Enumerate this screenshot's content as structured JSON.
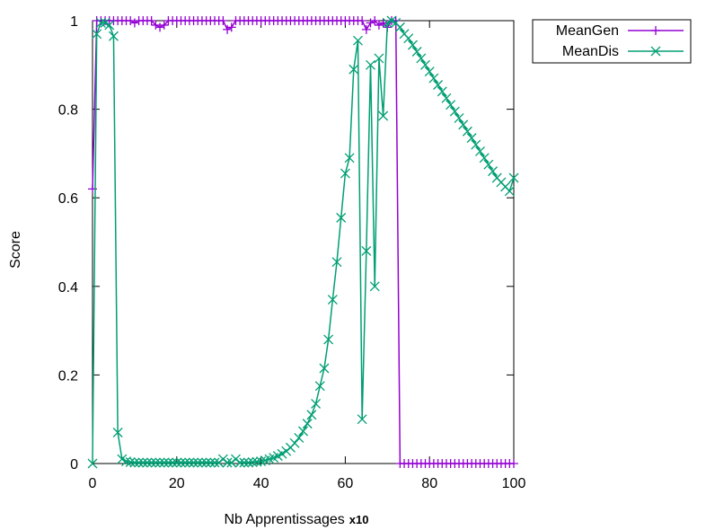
{
  "chart_data": {
    "type": "line",
    "xlabel": "Nb Apprentissages",
    "xlabel_suffix": "x10",
    "ylabel": "Score",
    "xlim": [
      0,
      100
    ],
    "ylim": [
      0,
      1
    ],
    "x_ticks": [
      "0",
      "20",
      "40",
      "60",
      "80",
      "100"
    ],
    "y_ticks": [
      "0",
      "0.2",
      "0.4",
      "0.6",
      "0.8",
      "1"
    ],
    "grid": false,
    "legend_position": "top-right, outside plot",
    "series": [
      {
        "name": "MeanGen",
        "color": "#9400d3",
        "marker": "plus",
        "points": [
          [
            0,
            0.62
          ],
          [
            1,
            1.0
          ],
          [
            2,
            1.0
          ],
          [
            3,
            1.0
          ],
          [
            4,
            1.0
          ],
          [
            5,
            1.0
          ],
          [
            6,
            1.0
          ],
          [
            7,
            1.0
          ],
          [
            8,
            1.0
          ],
          [
            9,
            1.0
          ],
          [
            10,
            0.995
          ],
          [
            11,
            1.0
          ],
          [
            12,
            1.0
          ],
          [
            13,
            1.0
          ],
          [
            14,
            1.0
          ],
          [
            15,
            0.99
          ],
          [
            16,
            0.985
          ],
          [
            17,
            0.99
          ],
          [
            18,
            1.0
          ],
          [
            19,
            1.0
          ],
          [
            20,
            1.0
          ],
          [
            21,
            1.0
          ],
          [
            22,
            1.0
          ],
          [
            23,
            1.0
          ],
          [
            24,
            1.0
          ],
          [
            25,
            1.0
          ],
          [
            26,
            1.0
          ],
          [
            27,
            1.0
          ],
          [
            28,
            1.0
          ],
          [
            29,
            1.0
          ],
          [
            30,
            1.0
          ],
          [
            31,
            1.0
          ],
          [
            32,
            0.98
          ],
          [
            33,
            0.985
          ],
          [
            34,
            1.0
          ],
          [
            35,
            1.0
          ],
          [
            36,
            1.0
          ],
          [
            37,
            1.0
          ],
          [
            38,
            1.0
          ],
          [
            39,
            1.0
          ],
          [
            40,
            1.0
          ],
          [
            41,
            1.0
          ],
          [
            42,
            1.0
          ],
          [
            43,
            1.0
          ],
          [
            44,
            1.0
          ],
          [
            45,
            1.0
          ],
          [
            46,
            1.0
          ],
          [
            47,
            1.0
          ],
          [
            48,
            1.0
          ],
          [
            49,
            1.0
          ],
          [
            50,
            1.0
          ],
          [
            51,
            1.0
          ],
          [
            52,
            1.0
          ],
          [
            53,
            1.0
          ],
          [
            54,
            1.0
          ],
          [
            55,
            1.0
          ],
          [
            56,
            1.0
          ],
          [
            57,
            1.0
          ],
          [
            58,
            1.0
          ],
          [
            59,
            1.0
          ],
          [
            60,
            1.0
          ],
          [
            61,
            1.0
          ],
          [
            62,
            1.0
          ],
          [
            63,
            1.0
          ],
          [
            64,
            1.0
          ],
          [
            65,
            0.98
          ],
          [
            66,
            0.995
          ],
          [
            67,
            1.0
          ],
          [
            68,
            0.99
          ],
          [
            69,
            0.995
          ],
          [
            70,
            0.985
          ],
          [
            71,
            1.0
          ],
          [
            72,
            1.0
          ],
          [
            73,
            0.0
          ],
          [
            74,
            0.0
          ],
          [
            75,
            0.0
          ],
          [
            76,
            0.0
          ],
          [
            77,
            0.0
          ],
          [
            78,
            0.0
          ],
          [
            79,
            0.0
          ],
          [
            80,
            0.0
          ],
          [
            81,
            0.0
          ],
          [
            82,
            0.0
          ],
          [
            83,
            0.0
          ],
          [
            84,
            0.0
          ],
          [
            85,
            0.0
          ],
          [
            86,
            0.0
          ],
          [
            87,
            0.0
          ],
          [
            88,
            0.0
          ],
          [
            89,
            0.0
          ],
          [
            90,
            0.0
          ],
          [
            91,
            0.0
          ],
          [
            92,
            0.0
          ],
          [
            93,
            0.0
          ],
          [
            94,
            0.0
          ],
          [
            95,
            0.0
          ],
          [
            96,
            0.0
          ],
          [
            97,
            0.0
          ],
          [
            98,
            0.0
          ],
          [
            99,
            0.0
          ],
          [
            100,
            0.0
          ]
        ]
      },
      {
        "name": "MeanDis",
        "color": "#009e73",
        "marker": "cross",
        "points": [
          [
            0,
            0.0
          ],
          [
            1,
            0.97
          ],
          [
            2,
            0.995
          ],
          [
            3,
            0.995
          ],
          [
            4,
            0.99
          ],
          [
            5,
            0.965
          ],
          [
            6,
            0.07
          ],
          [
            7,
            0.01
          ],
          [
            8,
            0.005
          ],
          [
            9,
            0.003
          ],
          [
            10,
            0.002
          ],
          [
            11,
            0.002
          ],
          [
            12,
            0.002
          ],
          [
            13,
            0.002
          ],
          [
            14,
            0.002
          ],
          [
            15,
            0.002
          ],
          [
            16,
            0.002
          ],
          [
            17,
            0.002
          ],
          [
            18,
            0.002
          ],
          [
            19,
            0.002
          ],
          [
            20,
            0.002
          ],
          [
            21,
            0.002
          ],
          [
            22,
            0.002
          ],
          [
            23,
            0.002
          ],
          [
            24,
            0.002
          ],
          [
            25,
            0.002
          ],
          [
            26,
            0.002
          ],
          [
            27,
            0.002
          ],
          [
            28,
            0.002
          ],
          [
            29,
            0.002
          ],
          [
            30,
            0.002
          ],
          [
            31,
            0.01
          ],
          [
            32,
            0.002
          ],
          [
            33,
            0.002
          ],
          [
            34,
            0.01
          ],
          [
            35,
            0.002
          ],
          [
            36,
            0.002
          ],
          [
            37,
            0.002
          ],
          [
            38,
            0.003
          ],
          [
            39,
            0.004
          ],
          [
            40,
            0.005
          ],
          [
            41,
            0.007
          ],
          [
            42,
            0.01
          ],
          [
            43,
            0.013
          ],
          [
            44,
            0.017
          ],
          [
            45,
            0.022
          ],
          [
            46,
            0.028
          ],
          [
            47,
            0.036
          ],
          [
            48,
            0.046
          ],
          [
            49,
            0.058
          ],
          [
            50,
            0.073
          ],
          [
            51,
            0.09
          ],
          [
            52,
            0.11
          ],
          [
            53,
            0.135
          ],
          [
            54,
            0.175
          ],
          [
            55,
            0.215
          ],
          [
            56,
            0.28
          ],
          [
            57,
            0.37
          ],
          [
            58,
            0.455
          ],
          [
            59,
            0.555
          ],
          [
            60,
            0.655
          ],
          [
            61,
            0.69
          ],
          [
            62,
            0.89
          ],
          [
            63,
            0.955
          ],
          [
            64,
            0.1
          ],
          [
            65,
            0.48
          ],
          [
            66,
            0.9
          ],
          [
            67,
            0.4
          ],
          [
            68,
            0.915
          ],
          [
            69,
            0.785
          ],
          [
            70,
            0.995
          ],
          [
            71,
            1.0
          ],
          [
            72,
            0.995
          ],
          [
            73,
            0.985
          ],
          [
            74,
            0.97
          ],
          [
            75,
            0.96
          ],
          [
            76,
            0.945
          ],
          [
            77,
            0.93
          ],
          [
            78,
            0.915
          ],
          [
            79,
            0.9
          ],
          [
            80,
            0.885
          ],
          [
            81,
            0.87
          ],
          [
            82,
            0.855
          ],
          [
            83,
            0.84
          ],
          [
            84,
            0.825
          ],
          [
            85,
            0.81
          ],
          [
            86,
            0.795
          ],
          [
            87,
            0.78
          ],
          [
            88,
            0.765
          ],
          [
            89,
            0.75
          ],
          [
            90,
            0.735
          ],
          [
            91,
            0.72
          ],
          [
            92,
            0.705
          ],
          [
            93,
            0.69
          ],
          [
            94,
            0.675
          ],
          [
            95,
            0.66
          ],
          [
            96,
            0.645
          ],
          [
            97,
            0.635
          ],
          [
            98,
            0.625
          ],
          [
            99,
            0.615
          ],
          [
            100,
            0.645
          ]
        ]
      }
    ]
  }
}
